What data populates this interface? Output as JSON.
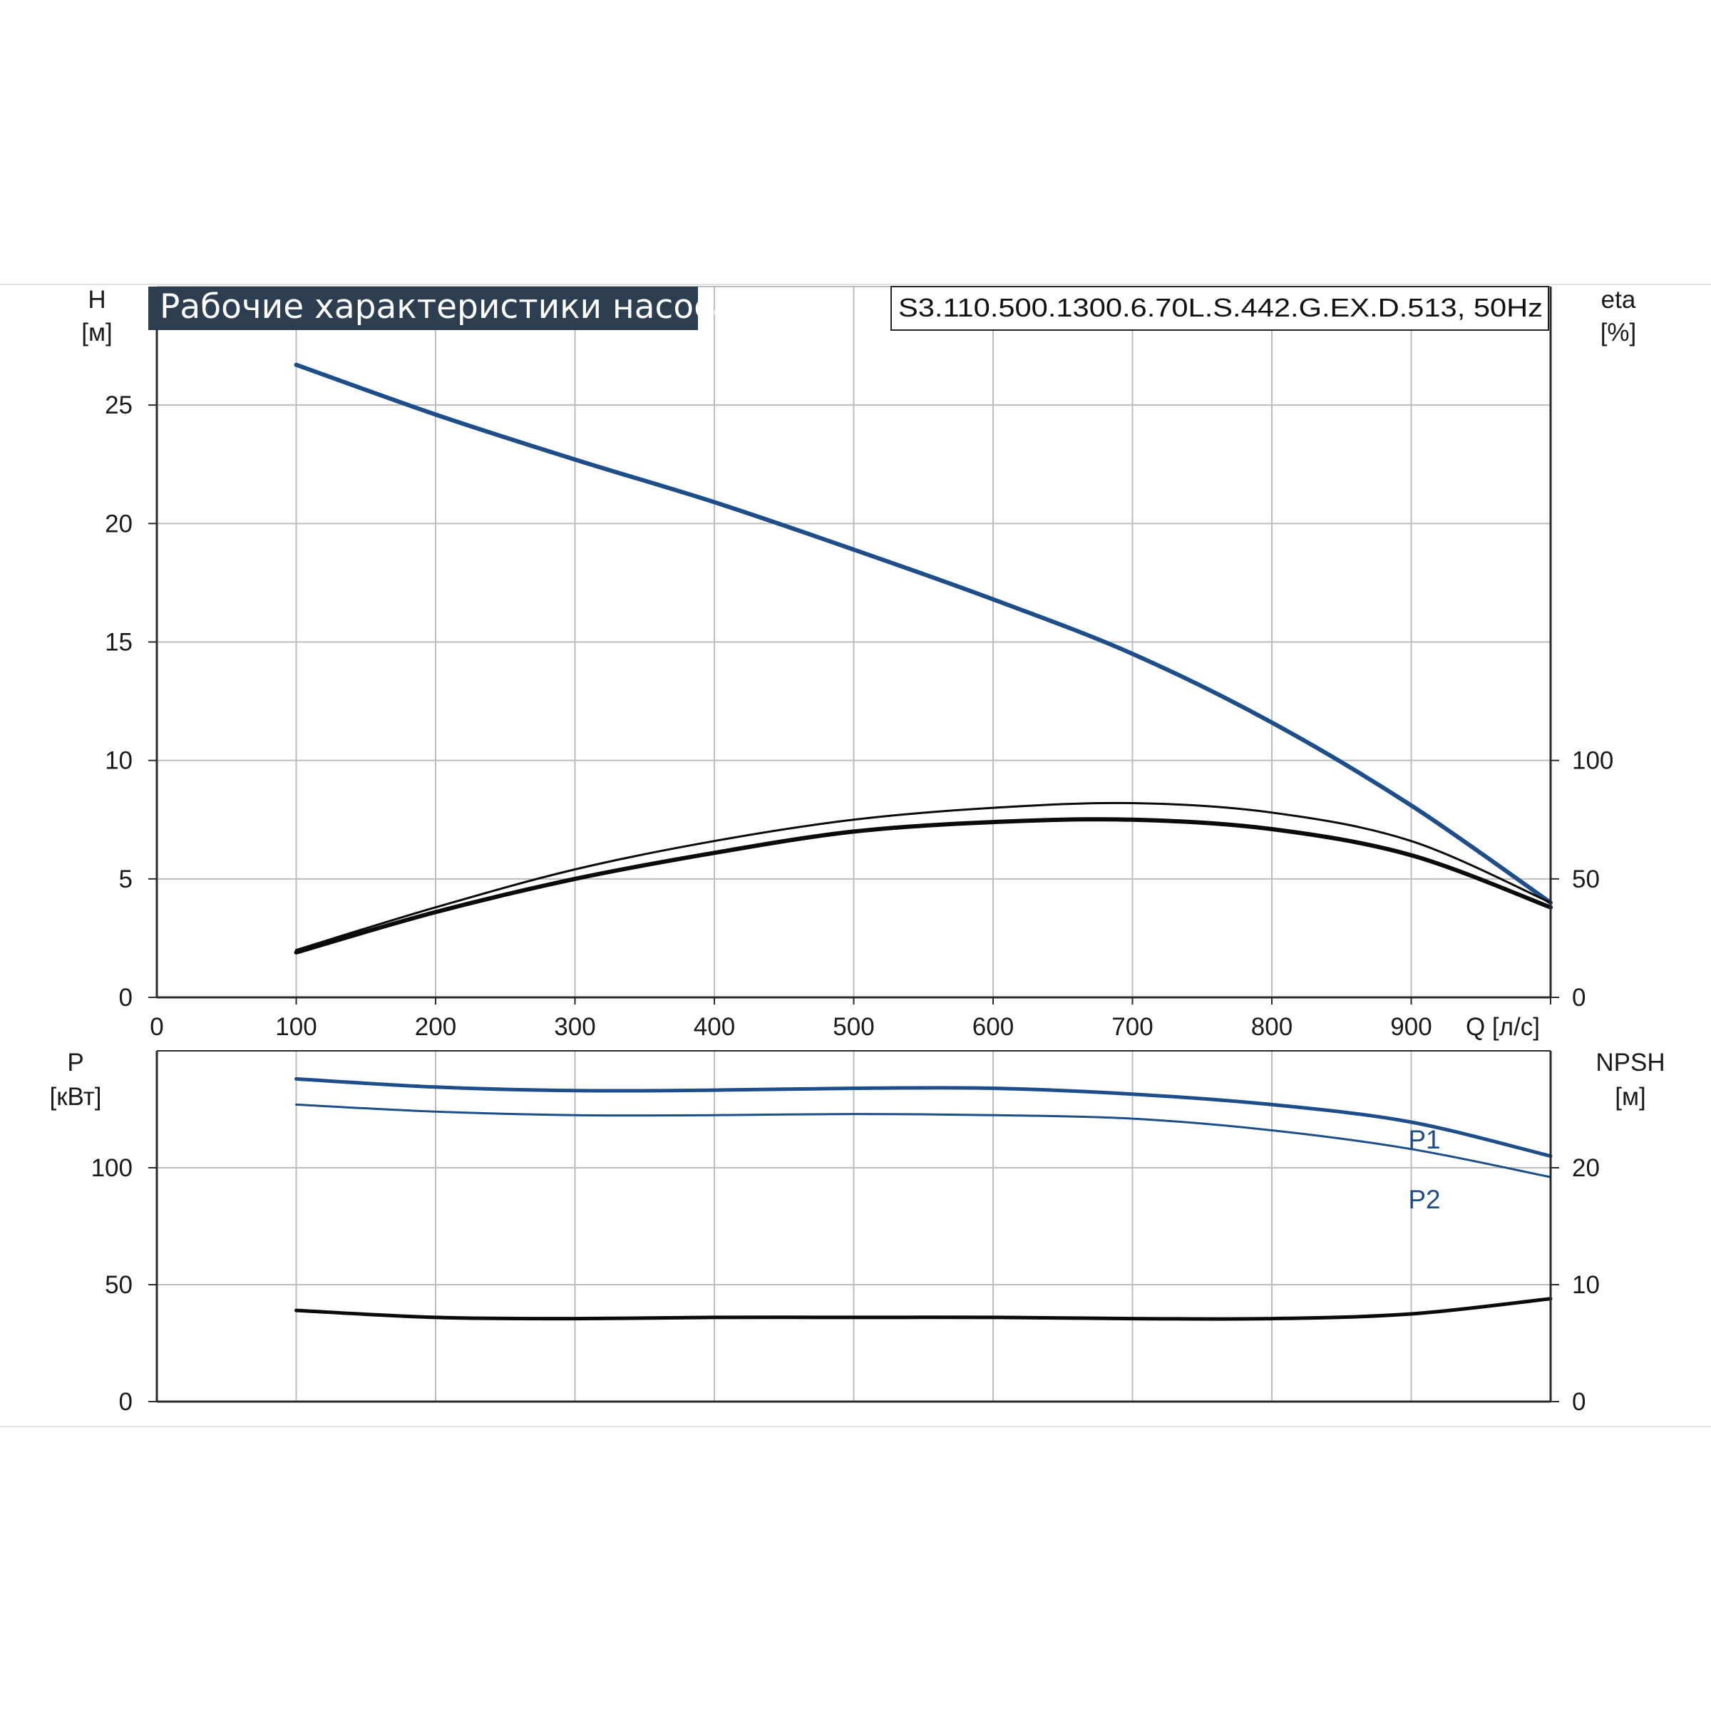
{
  "title": "Рабочие характеристики насоса",
  "model": "S3.110.500.1300.6.70L.S.442.G.EX.D.513, 50Hz",
  "colors": {
    "blue": "#1d4e89",
    "black": "#0a0a0a",
    "grid": "#bdbdbd",
    "frame": "#2a2a2a",
    "title_bg": "#2d3e50"
  },
  "chart_data": [
    {
      "type": "line",
      "name": "upper",
      "left_axis": {
        "label": "H",
        "unit": "[м]",
        "range": [
          0,
          30
        ],
        "ticks": [
          0,
          5,
          10,
          15,
          20,
          25
        ]
      },
      "right_axis": {
        "label": "eta",
        "unit": "[%]",
        "range": [
          0,
          300
        ],
        "ticks": [
          0,
          50,
          100
        ]
      },
      "x_axis": {
        "label": "Q [л/с]",
        "range": [
          0,
          1000
        ],
        "ticks": [
          0,
          100,
          200,
          300,
          400,
          500,
          600,
          700,
          800,
          900
        ]
      },
      "grid": true,
      "series": [
        {
          "axis": "left",
          "color": "#1d4e89",
          "x": [
            100,
            200,
            300,
            400,
            500,
            600,
            700,
            800,
            900,
            1000
          ],
          "y": [
            26.7,
            24.6,
            22.7,
            20.9,
            18.9,
            16.8,
            14.5,
            11.6,
            8.1,
            4.0
          ]
        },
        {
          "axis": "right",
          "color": "#0a0a0a",
          "x": [
            100,
            200,
            300,
            400,
            500,
            600,
            700,
            800,
            900,
            1000
          ],
          "y": [
            20,
            38,
            54,
            66,
            75,
            80,
            82,
            78,
            66,
            40
          ]
        },
        {
          "axis": "right",
          "color": "#0a0a0a",
          "x": [
            100,
            200,
            300,
            400,
            500,
            600,
            700,
            800,
            900,
            1000
          ],
          "y": [
            19,
            36,
            50,
            61,
            70,
            74,
            75,
            71,
            60,
            38
          ]
        }
      ]
    },
    {
      "type": "line",
      "name": "lower",
      "left_axis": {
        "label": "P",
        "unit": "[кВт]",
        "range": [
          0,
          150
        ],
        "ticks": [
          0,
          50,
          100
        ]
      },
      "right_axis": {
        "label": "NPSH",
        "unit": "[м]",
        "range": [
          0,
          30
        ],
        "ticks": [
          0,
          10,
          20
        ]
      },
      "x_axis": {
        "range": [
          0,
          1000
        ]
      },
      "grid": true,
      "series": [
        {
          "name": "P1",
          "axis": "left",
          "color": "#1d4e89",
          "x": [
            100,
            200,
            300,
            400,
            500,
            600,
            700,
            800,
            900,
            1000
          ],
          "y": [
            138,
            134.5,
            133,
            133.2,
            134,
            134,
            131.5,
            127,
            119.5,
            105
          ]
        },
        {
          "name": "P2",
          "axis": "left",
          "color": "#1d4e89",
          "x": [
            100,
            200,
            300,
            400,
            500,
            600,
            700,
            800,
            900,
            1000
          ],
          "y": [
            127,
            124,
            122.5,
            122.5,
            123,
            122.5,
            121,
            116,
            108,
            96
          ]
        },
        {
          "axis": "right",
          "color": "#0a0a0a",
          "x": [
            100,
            200,
            300,
            400,
            500,
            600,
            700,
            800,
            900,
            1000
          ],
          "y": [
            7.8,
            7.2,
            7.1,
            7.2,
            7.2,
            7.2,
            7.1,
            7.1,
            7.5,
            8.8
          ]
        }
      ]
    }
  ]
}
